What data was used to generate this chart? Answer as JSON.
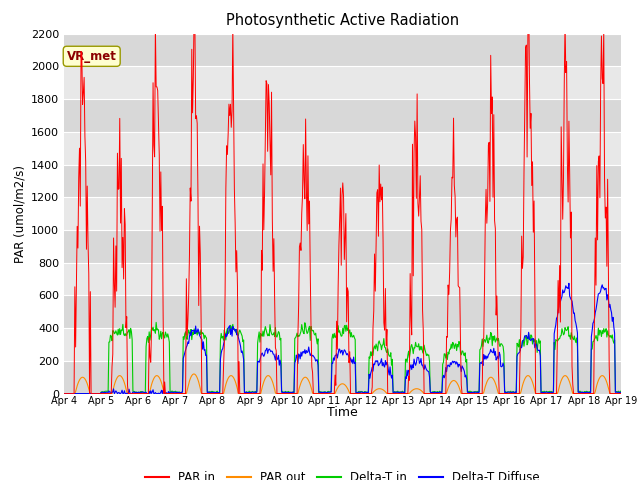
{
  "title": "Photosynthetic Active Radiation",
  "ylabel": "PAR (umol/m2/s)",
  "xlabel": "Time",
  "legend_label": "VR_met",
  "series_labels": [
    "PAR in",
    "PAR out",
    "Delta-T in",
    "Delta-T Diffuse"
  ],
  "series_colors": [
    "#ff0000",
    "#ff8c00",
    "#00cc00",
    "#0000ff"
  ],
  "ylim": [
    0,
    2200
  ],
  "fig_bg_color": "#ffffff",
  "plot_bg_color": "#e8e8e8",
  "grid_color": "#ffffff",
  "x_tick_labels": [
    "Apr 4",
    "Apr 5",
    "Apr 6",
    "Apr 7",
    "Apr 8",
    "Apr 9",
    "Apr 10",
    "Apr 11",
    "Apr 12",
    "Apr 13",
    "Apr 14",
    "Apr 15",
    "Apr 16",
    "Apr 17",
    "Apr 18",
    "Apr 19"
  ],
  "yticks": [
    0,
    200,
    400,
    600,
    800,
    1000,
    1200,
    1400,
    1600,
    1800,
    2000,
    2200
  ],
  "n_days": 15,
  "pts_per_day": 48
}
